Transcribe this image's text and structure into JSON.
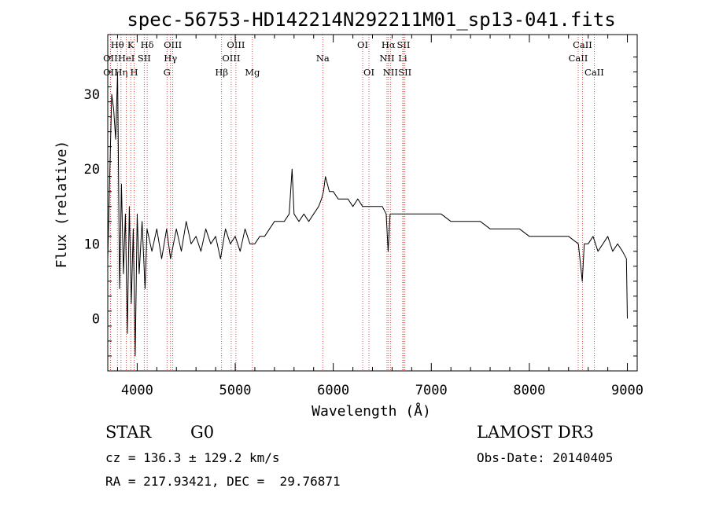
{
  "chart_data": {
    "type": "line",
    "title": "spec-56753-HD142214N292211M01_sp13-041.fits",
    "xlabel": "Wavelength (Å)",
    "ylabel": "Flux (relative)",
    "xlim": [
      3700,
      9100
    ],
    "ylim": [
      -7,
      38
    ],
    "xticks": [
      4000,
      5000,
      6000,
      7000,
      8000,
      9000
    ],
    "yticks": [
      0,
      10,
      20,
      30
    ],
    "grid": false,
    "line_color": "#000000",
    "marker_color": "#cc2222",
    "series": [
      {
        "values": [
          [
            3700,
            8
          ],
          [
            3740,
            30
          ],
          [
            3760,
            28
          ],
          [
            3780,
            24
          ],
          [
            3800,
            33
          ],
          [
            3820,
            4
          ],
          [
            3840,
            18
          ],
          [
            3860,
            6
          ],
          [
            3880,
            14
          ],
          [
            3900,
            -2
          ],
          [
            3920,
            15
          ],
          [
            3940,
            2
          ],
          [
            3960,
            12
          ],
          [
            3980,
            -5
          ],
          [
            4000,
            14
          ],
          [
            4020,
            6
          ],
          [
            4050,
            13
          ],
          [
            4080,
            4
          ],
          [
            4100,
            12
          ],
          [
            4150,
            9
          ],
          [
            4200,
            12
          ],
          [
            4250,
            8
          ],
          [
            4300,
            12
          ],
          [
            4340,
            8
          ],
          [
            4400,
            12
          ],
          [
            4450,
            9
          ],
          [
            4500,
            13
          ],
          [
            4550,
            10
          ],
          [
            4600,
            11
          ],
          [
            4650,
            9
          ],
          [
            4700,
            12
          ],
          [
            4750,
            10
          ],
          [
            4800,
            11
          ],
          [
            4850,
            8
          ],
          [
            4900,
            12
          ],
          [
            4950,
            10
          ],
          [
            5000,
            11
          ],
          [
            5050,
            9
          ],
          [
            5100,
            12
          ],
          [
            5150,
            10
          ],
          [
            5200,
            10
          ],
          [
            5250,
            11
          ],
          [
            5300,
            11
          ],
          [
            5350,
            12
          ],
          [
            5400,
            13
          ],
          [
            5450,
            13
          ],
          [
            5500,
            13
          ],
          [
            5550,
            14
          ],
          [
            5580,
            20
          ],
          [
            5600,
            14
          ],
          [
            5650,
            13
          ],
          [
            5700,
            14
          ],
          [
            5750,
            13
          ],
          [
            5800,
            14
          ],
          [
            5850,
            15
          ],
          [
            5880,
            16
          ],
          [
            5900,
            17
          ],
          [
            5920,
            19
          ],
          [
            5940,
            18
          ],
          [
            5960,
            17
          ],
          [
            6000,
            17
          ],
          [
            6050,
            16
          ],
          [
            6100,
            16
          ],
          [
            6150,
            16
          ],
          [
            6200,
            15
          ],
          [
            6250,
            16
          ],
          [
            6300,
            15
          ],
          [
            6350,
            15
          ],
          [
            6400,
            15
          ],
          [
            6450,
            15
          ],
          [
            6500,
            15
          ],
          [
            6540,
            14
          ],
          [
            6560,
            9
          ],
          [
            6580,
            14
          ],
          [
            6600,
            14
          ],
          [
            6650,
            14
          ],
          [
            6700,
            14
          ],
          [
            6750,
            14
          ],
          [
            6800,
            14
          ],
          [
            6900,
            14
          ],
          [
            7000,
            14
          ],
          [
            7100,
            14
          ],
          [
            7200,
            13
          ],
          [
            7300,
            13
          ],
          [
            7400,
            13
          ],
          [
            7500,
            13
          ],
          [
            7600,
            12
          ],
          [
            7700,
            12
          ],
          [
            7800,
            12
          ],
          [
            7900,
            12
          ],
          [
            8000,
            11
          ],
          [
            8100,
            11
          ],
          [
            8200,
            11
          ],
          [
            8300,
            11
          ],
          [
            8400,
            11
          ],
          [
            8500,
            10
          ],
          [
            8540,
            5
          ],
          [
            8560,
            10
          ],
          [
            8600,
            10
          ],
          [
            8650,
            11
          ],
          [
            8700,
            9
          ],
          [
            8750,
            10
          ],
          [
            8800,
            11
          ],
          [
            8850,
            9
          ],
          [
            8900,
            10
          ],
          [
            8950,
            9
          ],
          [
            8990,
            8
          ],
          [
            9000,
            0
          ]
        ]
      }
    ],
    "line_markers": [
      {
        "label": "OII",
        "wavelength": 3727,
        "row": 1
      },
      {
        "label": "Hθ",
        "wavelength": 3798,
        "row": 0
      },
      {
        "label": "OII",
        "wavelength": 3727,
        "row": 2
      },
      {
        "label": "Hη",
        "wavelength": 3835,
        "row": 2
      },
      {
        "label": "HeI",
        "wavelength": 3889,
        "row": 1
      },
      {
        "label": "K",
        "wavelength": 3934,
        "row": 0
      },
      {
        "label": "H",
        "wavelength": 3969,
        "row": 2
      },
      {
        "label": "SII",
        "wavelength": 4072,
        "row": 1
      },
      {
        "label": "Hδ",
        "wavelength": 4102,
        "row": 0
      },
      {
        "label": "G",
        "wavelength": 4304,
        "row": 2
      },
      {
        "label": "Hγ",
        "wavelength": 4340,
        "row": 1
      },
      {
        "label": "OIII",
        "wavelength": 4363,
        "row": 0
      },
      {
        "label": "Hβ",
        "wavelength": 4861,
        "row": 2
      },
      {
        "label": "OIII",
        "wavelength": 4959,
        "row": 1
      },
      {
        "label": "OIII",
        "wavelength": 5007,
        "row": 0
      },
      {
        "label": "Mg",
        "wavelength": 5175,
        "row": 2
      },
      {
        "label": "Na",
        "wavelength": 5893,
        "row": 1
      },
      {
        "label": "OI",
        "wavelength": 6300,
        "row": 0
      },
      {
        "label": "OI",
        "wavelength": 6364,
        "row": 2
      },
      {
        "label": "NII",
        "wavelength": 6548,
        "row": 1
      },
      {
        "label": "Hα",
        "wavelength": 6563,
        "row": 0
      },
      {
        "label": "NII",
        "wavelength": 6583,
        "row": 2
      },
      {
        "label": "Li",
        "wavelength": 6708,
        "row": 1
      },
      {
        "label": "SII",
        "wavelength": 6717,
        "row": 0
      },
      {
        "label": "SII",
        "wavelength": 6731,
        "row": 2
      },
      {
        "label": "CaII",
        "wavelength": 8498,
        "row": 1
      },
      {
        "label": "CaII",
        "wavelength": 8542,
        "row": 0
      },
      {
        "label": "CaII",
        "wavelength": 8662,
        "row": 2
      }
    ]
  },
  "info": {
    "class": "STAR",
    "subclass": "G0",
    "survey": "LAMOST DR3",
    "cz": "cz = 136.3 ± 129.2 km/s",
    "obsdate": "Obs-Date: 20140405",
    "radec": "RA = 217.93421, DEC =  29.76871"
  }
}
